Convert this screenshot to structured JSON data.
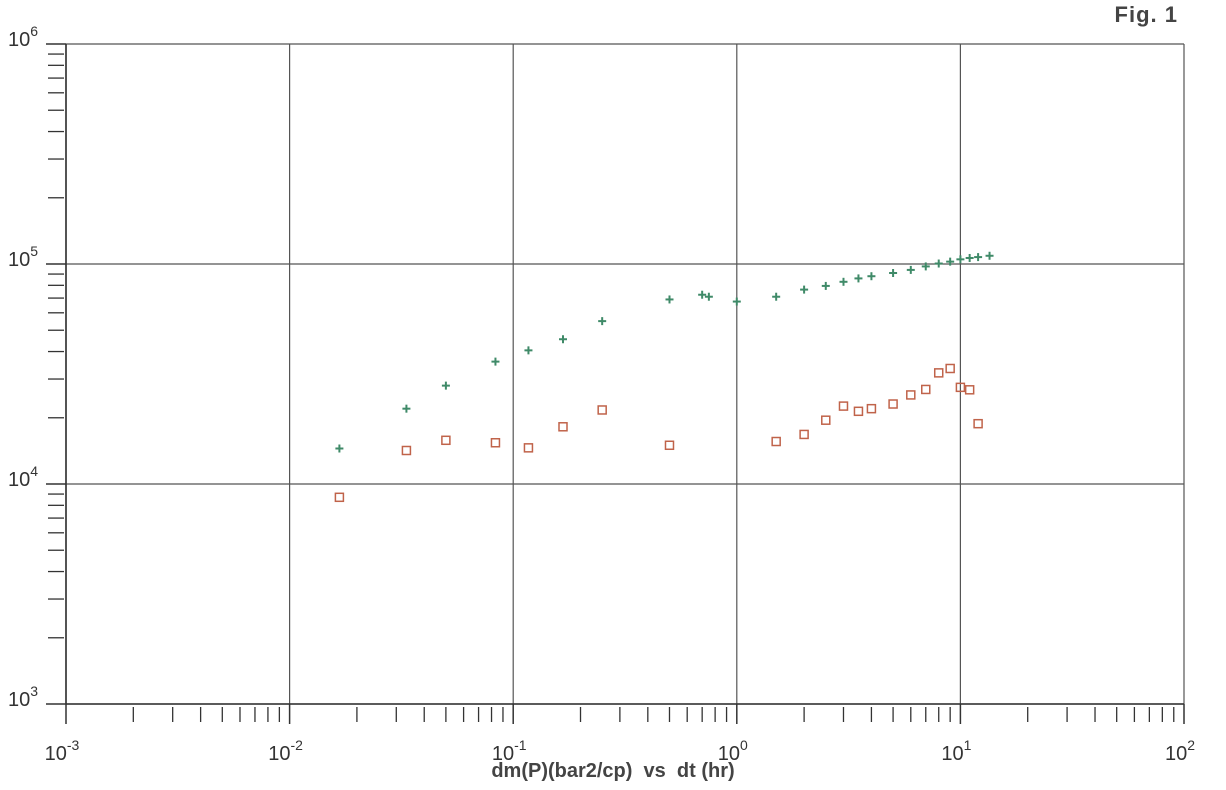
{
  "figure_label": "Fig. 1",
  "chart_data": {
    "type": "scatter",
    "title": "",
    "xlabel": "dm(P)(bar2/cp)  vs  dt (hr)",
    "ylabel": "",
    "xscale": "log",
    "yscale": "log",
    "xlim": [
      0.001,
      100
    ],
    "ylim": [
      1000,
      1000000
    ],
    "grid": true,
    "x_ticks": [
      {
        "base": "10",
        "exp": "-3",
        "value": 0.001
      },
      {
        "base": "10",
        "exp": "-2",
        "value": 0.01
      },
      {
        "base": "10",
        "exp": "-1",
        "value": 0.1
      },
      {
        "base": "10",
        "exp": "0",
        "value": 1
      },
      {
        "base": "10",
        "exp": "1",
        "value": 10
      },
      {
        "base": "10",
        "exp": "2",
        "value": 100
      }
    ],
    "y_ticks": [
      {
        "base": "10",
        "exp": "3",
        "value": 1000
      },
      {
        "base": "10",
        "exp": "4",
        "value": 10000
      },
      {
        "base": "10",
        "exp": "5",
        "value": 100000
      },
      {
        "base": "10",
        "exp": "6",
        "value": 1000000
      }
    ],
    "series": [
      {
        "marker": "plus",
        "color": "#3f8a68",
        "x": [
          0.0167,
          0.0333,
          0.05,
          0.0833,
          0.117,
          0.167,
          0.25,
          0.5,
          0.7,
          0.75,
          1.0,
          1.5,
          2.0,
          2.5,
          3.0,
          3.5,
          4.0,
          5.0,
          6.0,
          7.0,
          8.0,
          9.0,
          10.0,
          11.0,
          12.0,
          13.5
        ],
        "y": [
          14500,
          22000,
          28000,
          36000,
          40500,
          45500,
          55000,
          69000,
          72500,
          71000,
          67500,
          71000,
          76500,
          79500,
          83000,
          86000,
          88000,
          91000,
          94000,
          97500,
          100500,
          102500,
          105000,
          106500,
          107500,
          109000
        ]
      },
      {
        "marker": "square",
        "color": "#c0634a",
        "x": [
          0.0167,
          0.0333,
          0.05,
          0.0833,
          0.117,
          0.167,
          0.25,
          0.5,
          1.5,
          2.0,
          2.5,
          3.0,
          3.5,
          4.0,
          5.0,
          6.0,
          7.0,
          8.0,
          9.0,
          10.0,
          11.0,
          12.0
        ],
        "y": [
          8700,
          14200,
          15800,
          15400,
          14600,
          18200,
          21700,
          15000,
          15600,
          16800,
          19500,
          22600,
          21400,
          22000,
          23100,
          25400,
          26900,
          32000,
          33500,
          27500,
          26800,
          18800
        ]
      }
    ]
  }
}
